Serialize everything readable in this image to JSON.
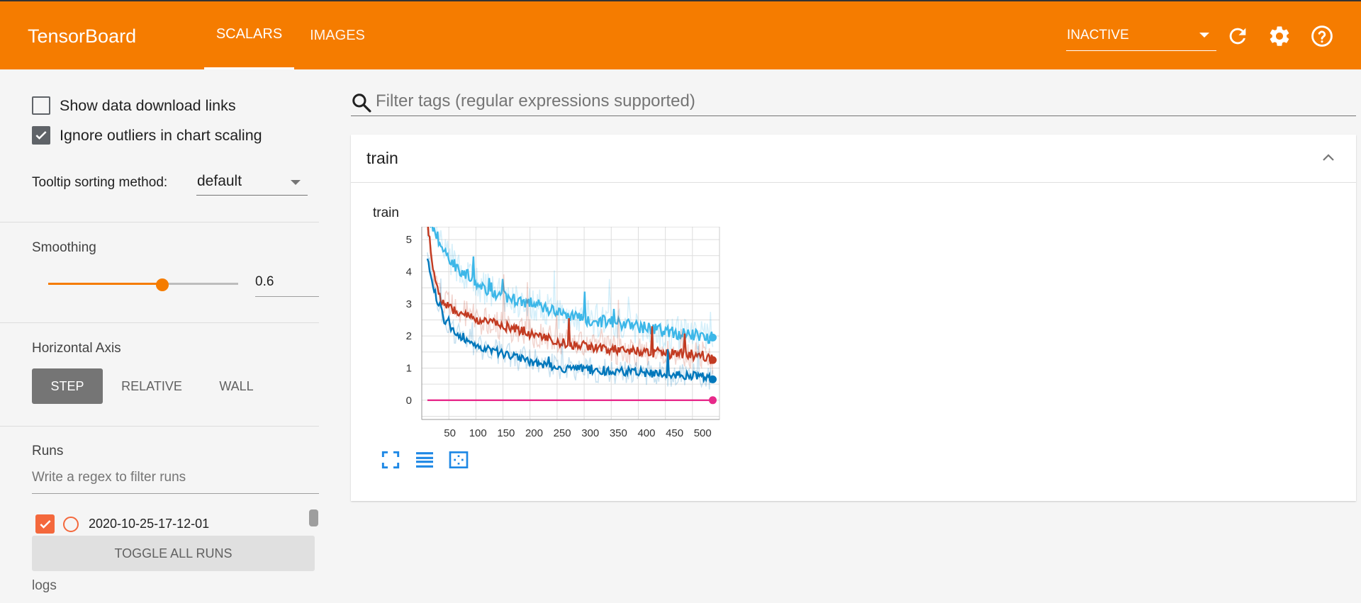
{
  "header": {
    "brand": "TensorBoard",
    "tabs": [
      {
        "label": "SCALARS",
        "active": true
      },
      {
        "label": "IMAGES",
        "active": false
      }
    ],
    "run_status": "INACTIVE",
    "accent_color": "#f57c00",
    "icons": [
      "reload-icon",
      "settings-icon",
      "help-icon"
    ]
  },
  "sidebar": {
    "show_download_links": {
      "label": "Show data download links",
      "checked": false
    },
    "ignore_outliers": {
      "label": "Ignore outliers in chart scaling",
      "checked": true
    },
    "tooltip": {
      "label": "Tooltip sorting method:",
      "value": "default"
    },
    "smoothing": {
      "title": "Smoothing",
      "value": "0.6",
      "fraction": 0.6
    },
    "horizontal_axis": {
      "title": "Horizontal Axis",
      "options": [
        "STEP",
        "RELATIVE",
        "WALL"
      ],
      "selected": "STEP"
    },
    "runs": {
      "title": "Runs",
      "filter_placeholder": "Write a regex to filter runs",
      "items": [
        {
          "name": "2020-10-25-17-12-01",
          "checked": true,
          "color": "#f4683c"
        }
      ],
      "toggle_label": "TOGGLE ALL RUNS",
      "logdir": "logs"
    }
  },
  "main": {
    "tag_filter_placeholder": "Filter tags (regular expressions supported)",
    "card_title": "train",
    "chart_title": "train"
  },
  "chart_data": {
    "type": "line",
    "title": "train",
    "xlabel": "",
    "ylabel": "",
    "xlim": [
      0,
      530
    ],
    "ylim": [
      -0.6,
      5.4
    ],
    "xticks": [
      50,
      100,
      150,
      200,
      250,
      300,
      350,
      400,
      450,
      500
    ],
    "yticks": [
      0,
      1,
      2,
      3,
      4,
      5
    ],
    "grid": true,
    "series": [
      {
        "color": "#3db7e8",
        "x": [
          10,
          20,
          30,
          40,
          60,
          80,
          100,
          150,
          200,
          250,
          300,
          350,
          400,
          450,
          500,
          518
        ],
        "values": [
          5.6,
          5.4,
          5.0,
          4.6,
          4.2,
          3.9,
          3.6,
          3.2,
          3.0,
          2.7,
          2.5,
          2.4,
          2.25,
          2.1,
          2.0,
          1.95
        ]
      },
      {
        "color": "#c23b22",
        "x": [
          10,
          20,
          30,
          40,
          60,
          80,
          100,
          150,
          200,
          250,
          300,
          350,
          400,
          450,
          500,
          518
        ],
        "values": [
          5.6,
          4.0,
          3.3,
          3.0,
          2.8,
          2.65,
          2.5,
          2.3,
          2.05,
          1.8,
          1.65,
          1.55,
          1.5,
          1.45,
          1.4,
          1.25
        ]
      },
      {
        "color": "#0077bb",
        "x": [
          10,
          20,
          30,
          40,
          60,
          80,
          100,
          150,
          200,
          250,
          300,
          350,
          400,
          450,
          500,
          518
        ],
        "values": [
          4.5,
          3.5,
          3.0,
          2.5,
          2.1,
          1.9,
          1.7,
          1.4,
          1.2,
          1.0,
          0.95,
          0.9,
          0.85,
          0.8,
          0.75,
          0.65
        ]
      },
      {
        "color": "#e7298a",
        "x": [
          10,
          518
        ],
        "values": [
          0,
          0
        ]
      }
    ]
  }
}
